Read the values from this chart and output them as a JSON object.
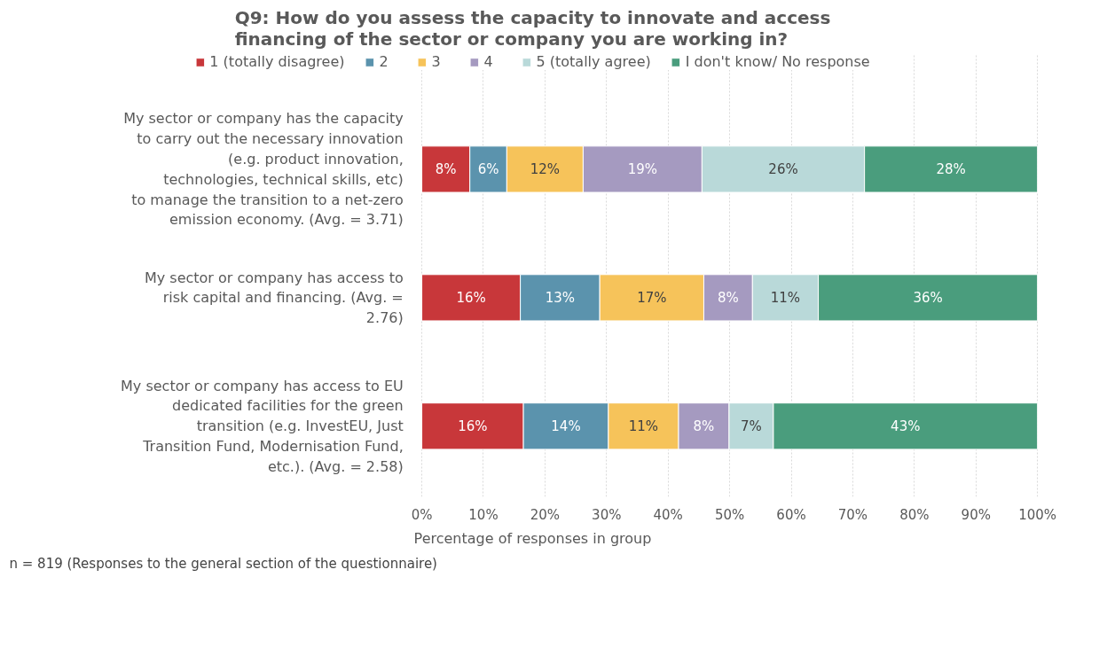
{
  "chart_data": {
    "type": "bar",
    "orientation": "horizontal",
    "stacked": true,
    "title": "Q9: How do you assess the capacity to innovate and access financing of the sector or company you are working in?",
    "xlabel": "Percentage of responses in group",
    "categories": [
      "My sector or company has the capacity to carry out the necessary innovation (e.g. product innovation, technologies, technical skills, etc) to manage the transition to a net-zero emission economy. (Avg. = 3.71)",
      "My sector or company has access to risk capital and financing. (Avg. = 2.76)",
      "My sector or company has access to EU dedicated facilities for the green transition (e.g. InvestEU, Just Transition Fund, Modernisation Fund, etc.). (Avg. = 2.58)"
    ],
    "series": [
      {
        "name": "1 (totally disagree)",
        "color": "#c8373a",
        "values": [
          7.8,
          16.0,
          16.5
        ],
        "value_labels": [
          "8%",
          "16%",
          "16%"
        ]
      },
      {
        "name": "2",
        "color": "#5b93ad",
        "values": [
          6.0,
          12.9,
          13.8
        ],
        "value_labels": [
          "6%",
          "13%",
          "14%"
        ]
      },
      {
        "name": "3",
        "color": "#f6c35a",
        "values": [
          12.4,
          16.9,
          11.4
        ],
        "value_labels": [
          "12%",
          "17%",
          "11%"
        ]
      },
      {
        "name": "4",
        "color": "#a59ac0",
        "values": [
          19.3,
          7.9,
          8.2
        ],
        "value_labels": [
          "19%",
          "8%",
          "8%"
        ]
      },
      {
        "name": "5 (totally agree)",
        "color": "#b9d9d9",
        "values": [
          26.4,
          10.7,
          7.2
        ],
        "value_labels": [
          "26%",
          "11%",
          "7%"
        ]
      },
      {
        "name": "I don't know/ No response",
        "color": "#4a9d7d",
        "values": [
          28.1,
          35.6,
          42.9
        ],
        "value_labels": [
          "28%",
          "36%",
          "43%"
        ]
      }
    ],
    "xlim": [
      0,
      100
    ],
    "xticks": [
      {
        "value": 0,
        "label": "0%"
      },
      {
        "value": 10,
        "label": "10%"
      },
      {
        "value": 20,
        "label": "20%"
      },
      {
        "value": 30,
        "label": "30%"
      },
      {
        "value": 40,
        "label": "40%"
      },
      {
        "value": 50,
        "label": "50%"
      },
      {
        "value": 60,
        "label": "60%"
      },
      {
        "value": 70,
        "label": "70%"
      },
      {
        "value": 80,
        "label": "80%"
      },
      {
        "value": 90,
        "label": "90%"
      },
      {
        "value": 100,
        "label": "100%"
      }
    ],
    "grid": "x",
    "legend": "top",
    "annotations": [
      "n = 819 (Responses to the general section of the questionnaire)"
    ]
  }
}
